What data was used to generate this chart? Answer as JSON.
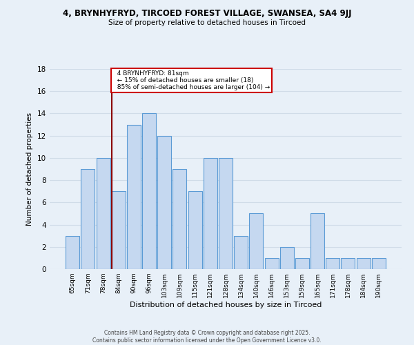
{
  "title_line1": "4, BRYNHYFRYD, TIRCOED FOREST VILLAGE, SWANSEA, SA4 9JJ",
  "title_line2": "Size of property relative to detached houses in Tircoed",
  "xlabel": "Distribution of detached houses by size in Tircoed",
  "ylabel": "Number of detached properties",
  "bin_labels": [
    "65sqm",
    "71sqm",
    "78sqm",
    "84sqm",
    "90sqm",
    "96sqm",
    "103sqm",
    "109sqm",
    "115sqm",
    "121sqm",
    "128sqm",
    "134sqm",
    "140sqm",
    "146sqm",
    "153sqm",
    "159sqm",
    "165sqm",
    "171sqm",
    "178sqm",
    "184sqm",
    "190sqm"
  ],
  "bar_values": [
    3,
    9,
    10,
    7,
    13,
    14,
    12,
    9,
    7,
    10,
    10,
    3,
    5,
    1,
    2,
    1,
    5,
    1,
    1,
    1,
    1
  ],
  "bar_color": "#c5d8f0",
  "bar_edge_color": "#5b9bd5",
  "vline_x_index": 3,
  "marker_label": "4 BRYNHYFRYD: 81sqm",
  "annotation_line1": "← 15% of detached houses are smaller (18)",
  "annotation_line2": "85% of semi-detached houses are larger (104) →",
  "annotation_box_color": "#ffffff",
  "annotation_box_edge_color": "#cc0000",
  "vline_color": "#8b0000",
  "ylim": [
    0,
    18
  ],
  "yticks": [
    0,
    2,
    4,
    6,
    8,
    10,
    12,
    14,
    16,
    18
  ],
  "background_color": "#e8f0f8",
  "grid_color": "#d0dce8",
  "footer_line1": "Contains HM Land Registry data © Crown copyright and database right 2025.",
  "footer_line2": "Contains public sector information licensed under the Open Government Licence v3.0."
}
